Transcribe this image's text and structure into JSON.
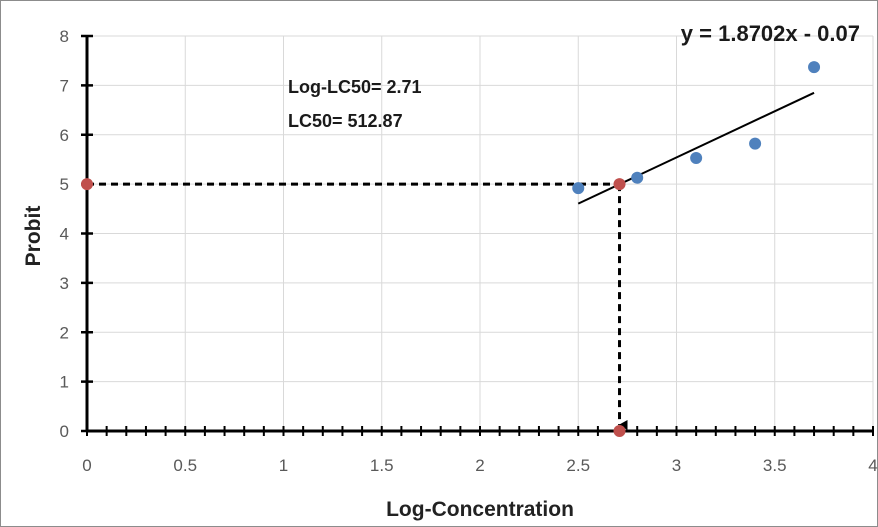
{
  "chart_data": {
    "type": "scatter",
    "xlabel": "Log-Concentration",
    "ylabel": "Probit",
    "xlim": [
      0,
      4
    ],
    "ylim": [
      0,
      8
    ],
    "x_ticks": [
      "0",
      "0.5",
      "1",
      "1.5",
      "2",
      "2.5",
      "3",
      "3.5",
      "4"
    ],
    "y_ticks": [
      "0",
      "1",
      "2",
      "3",
      "4",
      "5",
      "6",
      "7",
      "8"
    ],
    "grid": "on",
    "series": [
      {
        "points": [
          {
            "x": 2.5,
            "y": 4.92
          },
          {
            "x": 2.8,
            "y": 5.13
          },
          {
            "x": 3.1,
            "y": 5.53
          },
          {
            "x": 3.4,
            "y": 5.82
          },
          {
            "x": 3.7,
            "y": 7.37
          }
        ],
        "color": "#4f81bd"
      }
    ],
    "trendline": {
      "equation": "y = 1.8702x - 0.07",
      "slope": 1.8702,
      "intercept": -0.07,
      "x_range": [
        2.5,
        3.7
      ],
      "color": "#000000"
    },
    "marked_points": [
      {
        "x": 0,
        "y": 5
      },
      {
        "x": 2.71,
        "y": 5
      },
      {
        "x": 2.71,
        "y": 0
      }
    ],
    "marked_color": "#c0504d",
    "reference_lines": {
      "x": 2.71,
      "y": 5,
      "style": "dashed"
    },
    "annotations": [
      "Log-LC50= 2.71",
      "LC50= 512.87"
    ]
  }
}
